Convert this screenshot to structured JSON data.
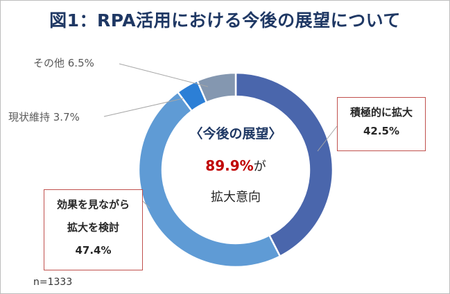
{
  "title": "図1：RPA活用における今後の展望について",
  "center": {
    "heading": "〈今後の展望〉",
    "value": "89.9%",
    "value_suffix": "が",
    "subtext": "拡大意向"
  },
  "sample_note": "n=1333",
  "chart_data": {
    "type": "pie",
    "variant": "donut",
    "title": "図1：RPA活用における今後の展望について",
    "series": [
      {
        "name": "積極的に拡大",
        "value": 42.5,
        "color": "#4a66ac"
      },
      {
        "name": "効果を見ながら拡大を検討",
        "value": 47.4,
        "color": "#5f9bd5"
      },
      {
        "name": "現状維持",
        "value": 3.7,
        "color": "#2c7fd6"
      },
      {
        "name": "その他",
        "value": 6.5,
        "color": "#8497b0"
      }
    ],
    "labels": {
      "active": {
        "line1": "積極的に拡大",
        "value": "42.5%"
      },
      "consider": {
        "line1": "効果を見ながら",
        "line2": "拡大を検討",
        "value": "47.4%"
      },
      "maintain": {
        "text": "現状維持 3.7%"
      },
      "other": {
        "text": "その他 6.5%"
      }
    },
    "sample_size": "n=1333"
  }
}
